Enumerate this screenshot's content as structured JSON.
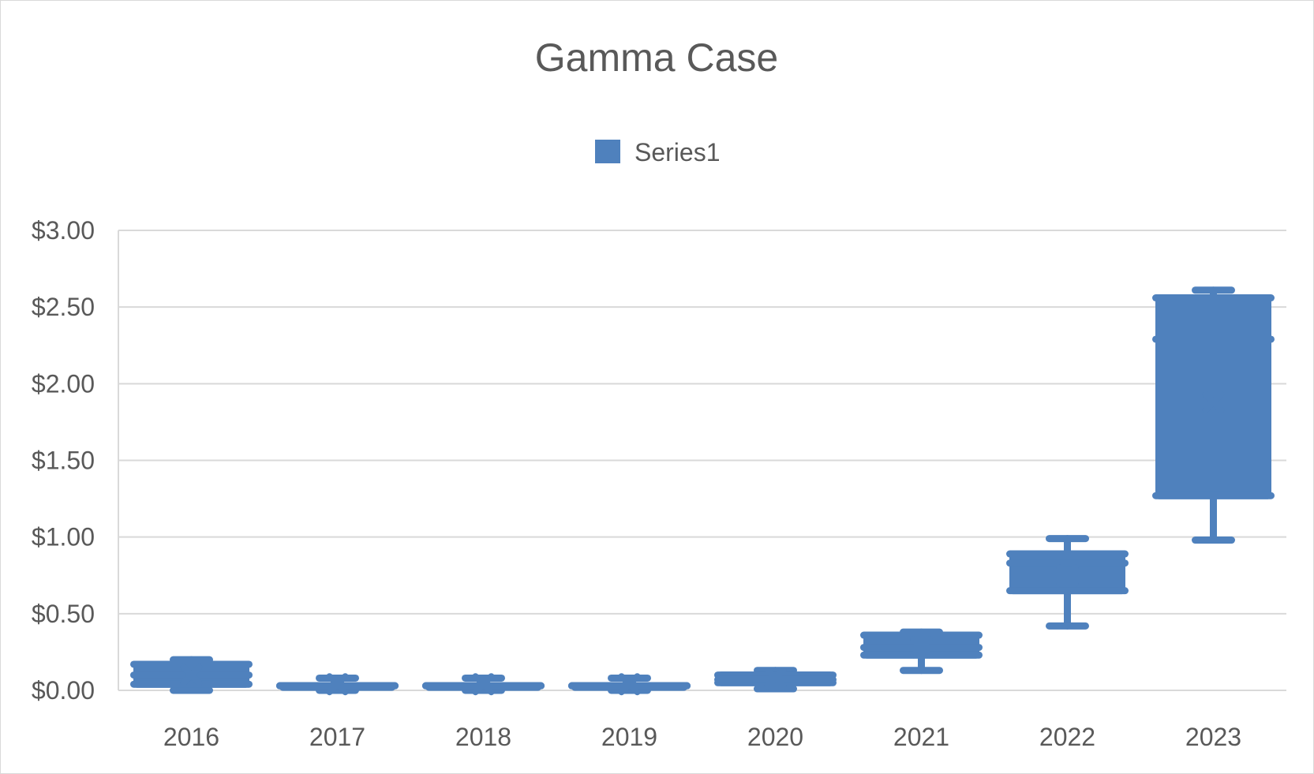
{
  "chart_data": {
    "type": "box",
    "title": "Gamma Case",
    "xlabel": "",
    "ylabel": "",
    "ylim": [
      0,
      3
    ],
    "y_ticks": [
      "$0.00",
      "$0.50",
      "$1.00",
      "$1.50",
      "$2.00",
      "$2.50",
      "$3.00"
    ],
    "y_tick_values": [
      0,
      0.5,
      1.0,
      1.5,
      2.0,
      2.5,
      3.0
    ],
    "grid": true,
    "legend_position": "top",
    "series": [
      {
        "name": "Series1",
        "color": "#4f81bd",
        "categories": [
          "2016",
          "2017",
          "2018",
          "2019",
          "2020",
          "2021",
          "2022",
          "2023"
        ],
        "boxes": [
          {
            "min": 0.0,
            "q1": 0.04,
            "median": 0.1,
            "q3": 0.17,
            "max": 0.2,
            "mean": 0.1
          },
          {
            "min": 0.0,
            "q1": 0.03,
            "median": 0.03,
            "q3": 0.03,
            "max": 0.08,
            "mean": 0.04
          },
          {
            "min": 0.0,
            "q1": 0.03,
            "median": 0.03,
            "q3": 0.03,
            "max": 0.08,
            "mean": 0.04
          },
          {
            "min": 0.0,
            "q1": 0.03,
            "median": 0.03,
            "q3": 0.03,
            "max": 0.08,
            "mean": 0.04
          },
          {
            "min": 0.01,
            "q1": 0.05,
            "median": 0.07,
            "q3": 0.1,
            "max": 0.13,
            "mean": 0.08
          },
          {
            "min": 0.13,
            "q1": 0.23,
            "median": 0.28,
            "q3": 0.36,
            "max": 0.38,
            "mean": 0.28
          },
          {
            "min": 0.42,
            "q1": 0.65,
            "median": 0.83,
            "q3": 0.89,
            "max": 0.99,
            "mean": 0.75
          },
          {
            "min": 0.98,
            "q1": 1.27,
            "median": 2.29,
            "q3": 2.56,
            "max": 2.61,
            "mean": 1.88
          }
        ]
      }
    ]
  }
}
